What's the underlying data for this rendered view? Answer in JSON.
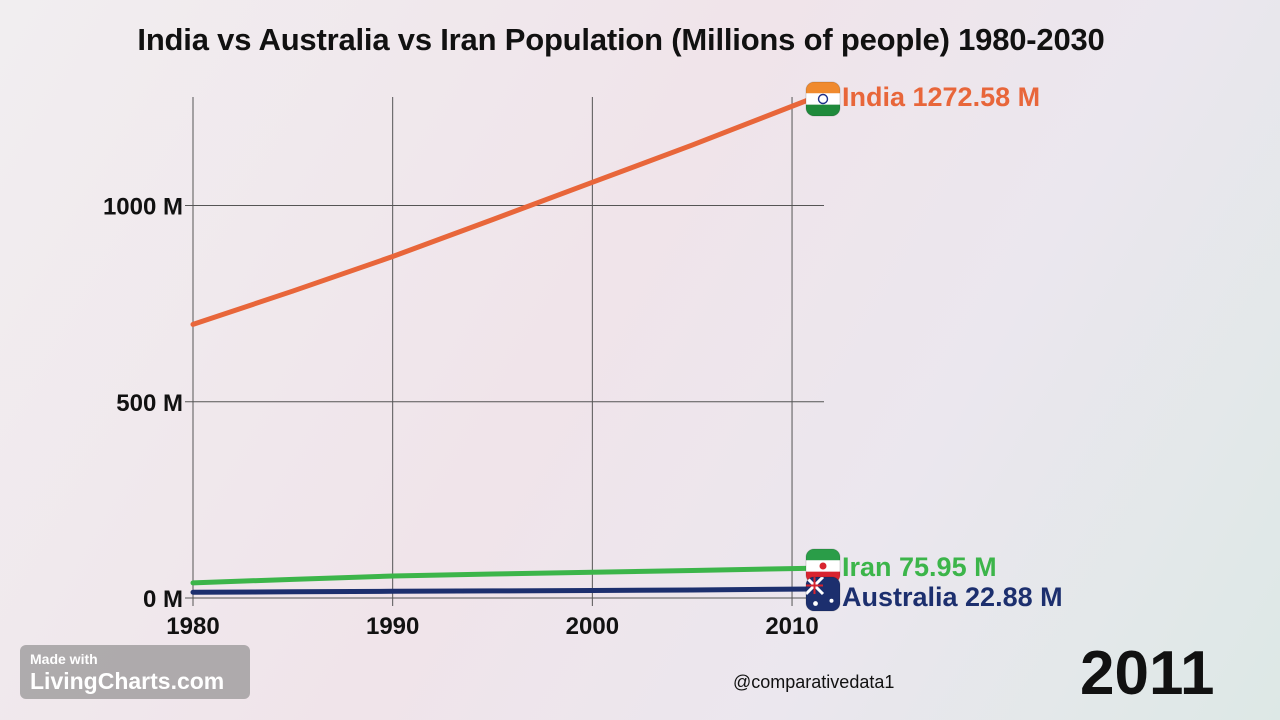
{
  "chart_data": {
    "type": "line",
    "title": "India vs Australia vs Iran Population (Millions of people) 1980-2030",
    "xlabel": "",
    "ylabel": "",
    "xlim": [
      1980,
      2011
    ],
    "ylim": [
      0,
      1272.58
    ],
    "x_ticks": [
      "1980",
      "1990",
      "2000",
      "2010"
    ],
    "y_ticks": [
      "0 M",
      "500 M",
      "1000 M"
    ],
    "y_tick_values": [
      0,
      500,
      1000
    ],
    "x_tick_values": [
      1980,
      1990,
      2000,
      2010
    ],
    "grid": true,
    "series": [
      {
        "name": "India",
        "color": "#e8663a",
        "value_label": "1272.58 M",
        "icon": "india-flag-icon",
        "x": [
          1980,
          1985,
          1990,
          1995,
          2000,
          2005,
          2011
        ],
        "y": [
          697,
          782,
          870,
          964,
          1059,
          1154,
          1272.58
        ]
      },
      {
        "name": "Iran",
        "color": "#3cb54a",
        "value_label": "75.95 M",
        "icon": "iran-flag-icon",
        "x": [
          1980,
          1985,
          1990,
          1995,
          2000,
          2005,
          2011
        ],
        "y": [
          38.5,
          47.6,
          56.0,
          61.0,
          65.5,
          70.0,
          75.95
        ]
      },
      {
        "name": "Australia",
        "color": "#1c2f6e",
        "value_label": "22.88 M",
        "icon": "australia-flag-icon",
        "x": [
          1980,
          1985,
          1990,
          1995,
          2000,
          2005,
          2011
        ],
        "y": [
          14.7,
          15.8,
          17.1,
          18.1,
          19.2,
          20.4,
          22.88
        ]
      }
    ]
  },
  "watermark": {
    "line1": "Made with",
    "line2": "LivingCharts.com"
  },
  "handle": "@comparativedata1",
  "current_year": "2011"
}
